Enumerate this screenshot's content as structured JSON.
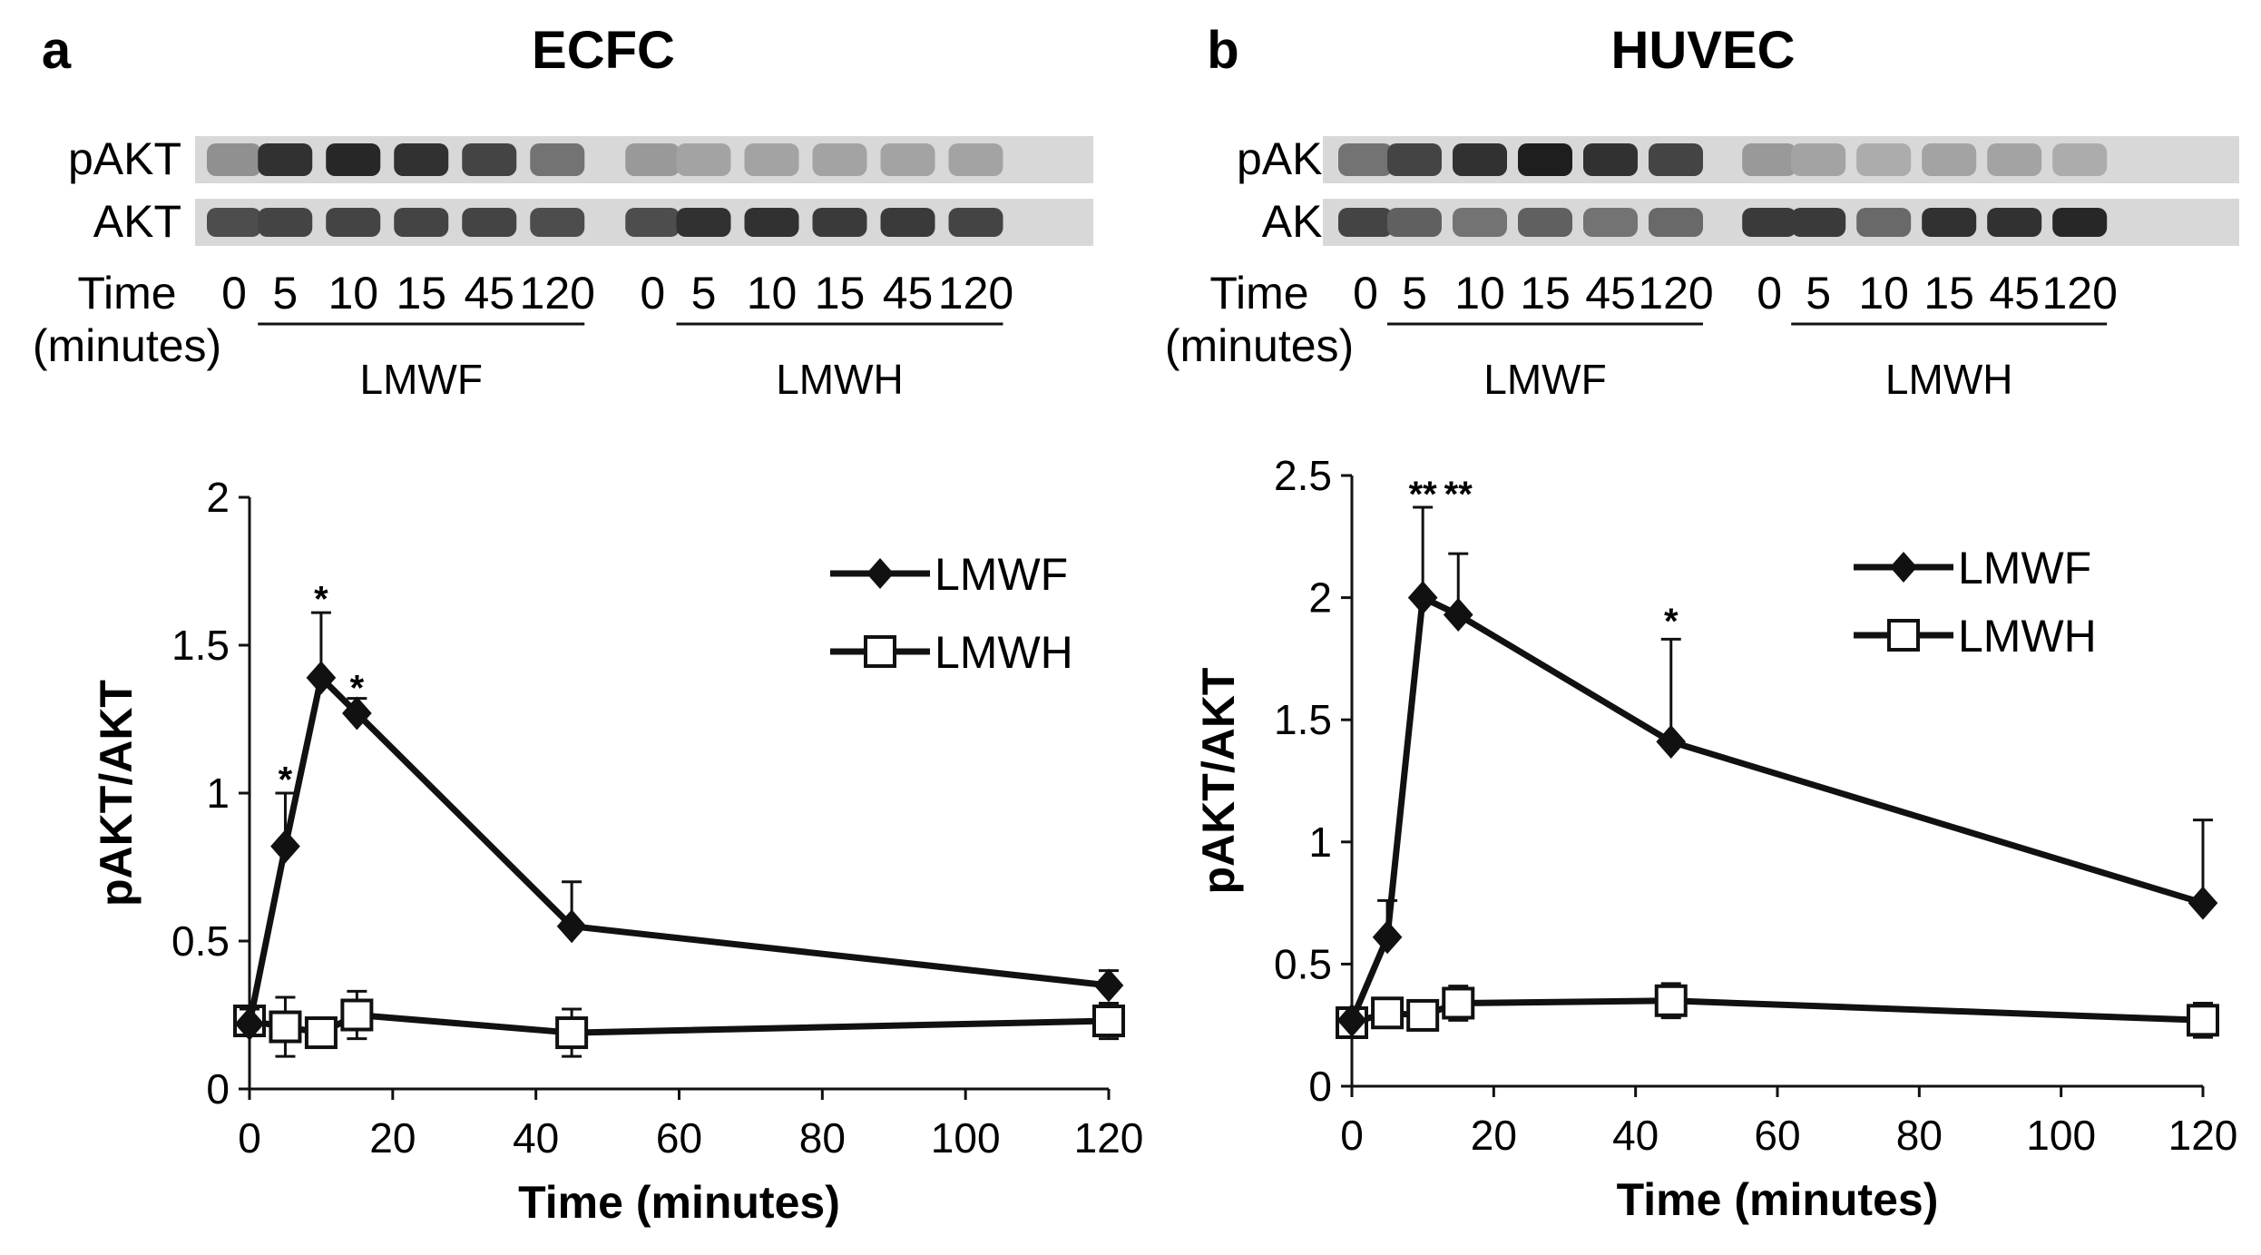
{
  "panels": [
    {
      "letter": "a",
      "title": "ECFC",
      "blot": {
        "row_labels": [
          "pAKT",
          "AKT"
        ],
        "time_label": "Time",
        "time_unit_label": "(minutes)",
        "groups": [
          {
            "name": "LMWF",
            "times": [
              "5",
              "10",
              "15",
              "45",
              "120"
            ],
            "pakt_intensity": [
              0.85,
              0.9,
              0.85,
              0.75,
              0.5
            ],
            "akt_intensity": [
              0.75,
              0.75,
              0.75,
              0.75,
              0.7
            ]
          },
          {
            "name": "LMWH",
            "times": [
              "5",
              "10",
              "15",
              "45",
              "120"
            ],
            "pakt_intensity": [
              0.25,
              0.25,
              0.25,
              0.25,
              0.25
            ],
            "akt_intensity": [
              0.85,
              0.85,
              0.8,
              0.8,
              0.75
            ]
          }
        ],
        "zero_labels": [
          "0",
          "0"
        ],
        "zero_pakt_intensity": [
          0.35,
          0.3
        ],
        "zero_akt_intensity": [
          0.7,
          0.7
        ]
      }
    },
    {
      "letter": "b",
      "title": "HUVEC",
      "blot": {
        "row_labels": [
          "pAKT",
          "AKT"
        ],
        "time_label": "Time",
        "time_unit_label": "(minutes)",
        "groups": [
          {
            "name": "LMWF",
            "times": [
              "5",
              "10",
              "15",
              "45",
              "120"
            ],
            "pakt_intensity": [
              0.75,
              0.85,
              0.95,
              0.85,
              0.75
            ],
            "akt_intensity": [
              0.6,
              0.5,
              0.6,
              0.5,
              0.55
            ]
          },
          {
            "name": "LMWH",
            "times": [
              "5",
              "10",
              "15",
              "45",
              "120"
            ],
            "pakt_intensity": [
              0.25,
              0.2,
              0.25,
              0.25,
              0.2
            ],
            "akt_intensity": [
              0.8,
              0.55,
              0.85,
              0.85,
              0.9
            ]
          }
        ],
        "zero_labels": [
          "0",
          "0"
        ],
        "zero_pakt_intensity": [
          0.5,
          0.3
        ],
        "zero_akt_intensity": [
          0.75,
          0.8
        ]
      }
    }
  ],
  "chart_data": [
    {
      "type": "line",
      "title": "",
      "xlabel": "Time (minutes)",
      "ylabel": "pAKT/AKT",
      "xlim": [
        0,
        120
      ],
      "ylim": [
        0,
        2
      ],
      "xticks": [
        0,
        20,
        40,
        60,
        80,
        100,
        120
      ],
      "yticks": [
        0,
        0.5,
        1,
        1.5,
        2
      ],
      "ytick_labels": [
        "0",
        "0.5",
        "1",
        "1.5",
        "2"
      ],
      "grid": false,
      "legend": "top-right",
      "series": [
        {
          "name": "LMWF",
          "marker": "diamond-filled",
          "x": [
            0,
            5,
            10,
            15,
            45,
            120
          ],
          "y": [
            0.22,
            0.82,
            1.39,
            1.27,
            0.55,
            0.35
          ],
          "err": [
            0.05,
            0.18,
            0.22,
            0.05,
            0.15,
            0.05
          ]
        },
        {
          "name": "LMWH",
          "marker": "square-open",
          "x": [
            0,
            5,
            10,
            15,
            45,
            120
          ],
          "y": [
            0.23,
            0.21,
            0.19,
            0.25,
            0.19,
            0.23
          ],
          "err": [
            0.05,
            0.1,
            0.05,
            0.08,
            0.08,
            0.06
          ]
        }
      ],
      "significance": [
        {
          "x": 5,
          "y": 1.06,
          "label": "*"
        },
        {
          "x": 10,
          "y": 1.67,
          "label": "*"
        },
        {
          "x": 15,
          "y": 1.37,
          "label": "*"
        }
      ]
    },
    {
      "type": "line",
      "title": "",
      "xlabel": "Time (minutes)",
      "ylabel": "pAKT/AKT",
      "xlim": [
        0,
        120
      ],
      "ylim": [
        0,
        2.5
      ],
      "xticks": [
        0,
        20,
        40,
        60,
        80,
        100,
        120
      ],
      "yticks": [
        0,
        0.5,
        1,
        1.5,
        2,
        2.5
      ],
      "ytick_labels": [
        "0",
        "0.5",
        "1",
        "1.5",
        "2",
        "2.5"
      ],
      "grid": false,
      "legend": "top-right",
      "series": [
        {
          "name": "LMWF",
          "marker": "diamond-filled",
          "x": [
            0,
            5,
            10,
            15,
            45,
            120
          ],
          "y": [
            0.27,
            0.61,
            2.0,
            1.93,
            1.41,
            0.75
          ],
          "err": [
            0.05,
            0.15,
            0.37,
            0.25,
            0.42,
            0.34
          ]
        },
        {
          "name": "LMWH",
          "marker": "square-open",
          "x": [
            0,
            5,
            10,
            15,
            45,
            120
          ],
          "y": [
            0.26,
            0.3,
            0.29,
            0.34,
            0.35,
            0.27
          ],
          "err": [
            0.04,
            0.05,
            0.04,
            0.07,
            0.07,
            0.07
          ]
        }
      ],
      "significance": [
        {
          "x": 10,
          "y": 2.44,
          "label": "**"
        },
        {
          "x": 15,
          "y": 2.44,
          "label": "**"
        },
        {
          "x": 45,
          "y": 1.92,
          "label": "*"
        }
      ]
    }
  ]
}
